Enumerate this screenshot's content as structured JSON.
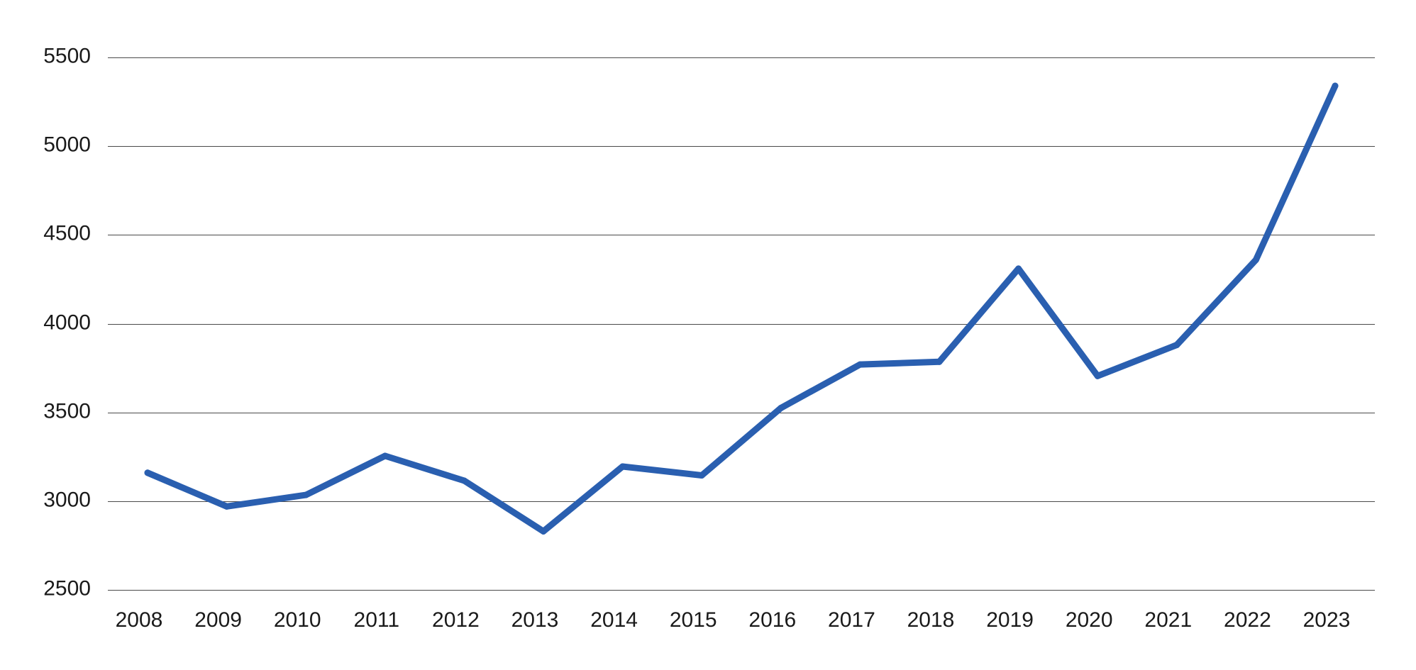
{
  "colors": {
    "series": "#2a5fb0",
    "gridline": "#4a4a4a",
    "text": "#1a1a1a",
    "background": "#ffffff"
  },
  "chart_data": {
    "type": "line",
    "title": "",
    "xlabel": "",
    "ylabel": "",
    "categories": [
      "2008",
      "2009",
      "2010",
      "2011",
      "2012",
      "2013",
      "2014",
      "2015",
      "2016",
      "2017",
      "2018",
      "2019",
      "2020",
      "2021",
      "2022",
      "2023"
    ],
    "series": [
      {
        "values": [
          3160,
          2970,
          3035,
          3255,
          3115,
          2830,
          3195,
          3145,
          3525,
          3770,
          3785,
          4310,
          3705,
          3880,
          4360,
          5340
        ]
      }
    ],
    "ylim": [
      2500,
      5500
    ],
    "yticks": [
      2500,
      3000,
      3500,
      4000,
      4500,
      5000,
      5500
    ],
    "grid": true,
    "legend": "none"
  }
}
